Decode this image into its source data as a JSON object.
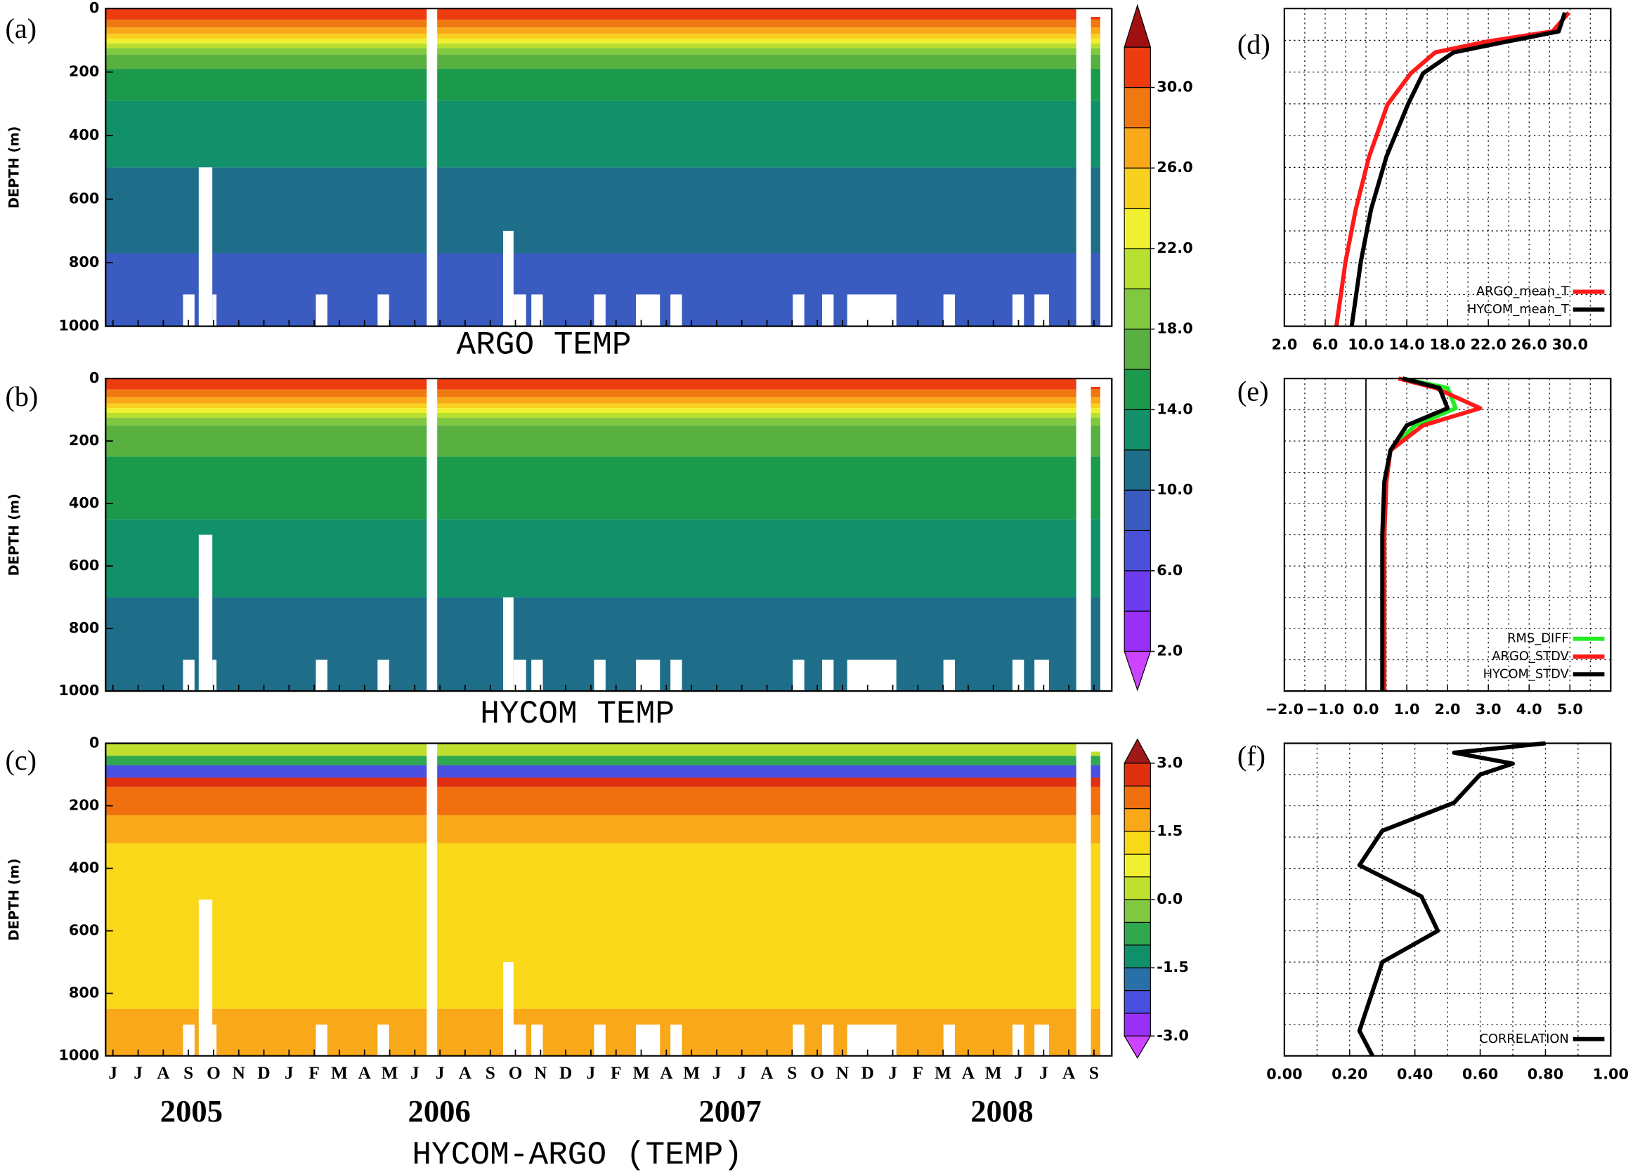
{
  "chart_data": [
    {
      "type": "contour",
      "panel_label": "(a)",
      "title": "ARGO TEMP",
      "ylabel": "DEPTH (m)",
      "ylim": [
        0,
        1000
      ],
      "y_inverted": true,
      "yticks": [
        0,
        200,
        400,
        600,
        800,
        1000
      ],
      "isotherms": {
        "levels": [
          30,
          28,
          26,
          24,
          22,
          20,
          18,
          16,
          14,
          12,
          10
        ],
        "depths": [
          35,
          60,
          80,
          95,
          110,
          125,
          145,
          190,
          290,
          500,
          770
        ]
      },
      "colorbar": {
        "levels": [
          2,
          4,
          6,
          8,
          10,
          12,
          14,
          16,
          18,
          20,
          22,
          24,
          26,
          28,
          30,
          32
        ],
        "colors": [
          "#cc44ff",
          "#9a30f8",
          "#6e3cf0",
          "#4a50d8",
          "#3a5cc0",
          "#1e6e8a",
          "#11906a",
          "#1a9a4a",
          "#58b040",
          "#80c840",
          "#b8e030",
          "#f0f030",
          "#f8d020",
          "#f8a818",
          "#f07810",
          "#ec3c10",
          "#a01010"
        ],
        "ticks": [
          {
            "value": 2,
            "label": "2.0"
          },
          {
            "value": 6,
            "label": "6.0"
          },
          {
            "value": 10,
            "label": "10.0"
          },
          {
            "value": 14,
            "label": "14.0"
          },
          {
            "value": 18,
            "label": "18.0"
          },
          {
            "value": 22,
            "label": "22.0"
          },
          {
            "value": 26,
            "label": "26.0"
          },
          {
            "value": 30,
            "label": "30.0"
          }
        ]
      }
    },
    {
      "type": "contour",
      "panel_label": "(b)",
      "title": "HYCOM TEMP",
      "ylabel": "DEPTH (m)",
      "ylim": [
        0,
        1000
      ],
      "y_inverted": true,
      "yticks": [
        0,
        200,
        400,
        600,
        800,
        1000
      ],
      "isotherms": {
        "levels": [
          30,
          28,
          26,
          24,
          22,
          20,
          18,
          16,
          14,
          12
        ],
        "depths": [
          35,
          60,
          80,
          95,
          110,
          125,
          150,
          250,
          450,
          700
        ]
      }
    },
    {
      "type": "layers",
      "panel_label": "(c)",
      "title": "HYCOM-ARGO (TEMP)",
      "ylabel": "DEPTH (m)",
      "ylim": [
        0,
        1000
      ],
      "y_inverted": true,
      "yticks": [
        0,
        200,
        400,
        600,
        800,
        1000
      ],
      "layers": {
        "depths": [
          0,
          40,
          70,
          110,
          140,
          230,
          320,
          850,
          1000
        ],
        "values": [
          0.3,
          -0.8,
          -2.2,
          2.8,
          2.3,
          1.8,
          1.3,
          1.7
        ]
      },
      "colorbar": {
        "levels": [
          -3,
          -2.5,
          -2,
          -1.5,
          -1,
          -0.5,
          0,
          0.5,
          1,
          1.5,
          2,
          2.5,
          3
        ],
        "colors": [
          "#cc44ff",
          "#9a30f8",
          "#4a50e0",
          "#2a70a8",
          "#10906a",
          "#30a850",
          "#80c840",
          "#c0e030",
          "#f0f030",
          "#f8d818",
          "#f8a818",
          "#f07010",
          "#e03010",
          "#a01818"
        ],
        "ticks": [
          {
            "value": -3,
            "label": "-3.0"
          },
          {
            "value": -1.5,
            "label": "-1.5"
          },
          {
            "value": 0,
            "label": "0.0"
          },
          {
            "value": 1.5,
            "label": "1.5"
          },
          {
            "value": 3,
            "label": "3.0"
          }
        ]
      },
      "categories": [
        "J",
        "J",
        "A",
        "S",
        "O",
        "N",
        "D",
        "J",
        "F",
        "M",
        "A",
        "M",
        "J",
        "J",
        "A",
        "S",
        "O",
        "N",
        "D",
        "J",
        "F",
        "M",
        "A",
        "M",
        "J",
        "J",
        "A",
        "S",
        "O",
        "N",
        "D",
        "J",
        "F",
        "M",
        "A",
        "M",
        "J",
        "J",
        "A",
        "S"
      ],
      "years": [
        "2005",
        "2006",
        "2007",
        "2008"
      ]
    },
    {
      "type": "line",
      "panel_label": "(d)",
      "ylim": [
        0,
        1000
      ],
      "y_inverted": true,
      "y": [
        13,
        72,
        105,
        138,
        204,
        303,
        467,
        632,
        796,
        1000
      ],
      "series": [
        {
          "name": "ARGO_mean_T",
          "color": "#ff1a1a",
          "values": [
            29.9,
            28.3,
            21.7,
            16.8,
            14.4,
            12.1,
            10.3,
            9.0,
            8.0,
            7.1
          ]
        },
        {
          "name": "HYCOM_mean_T",
          "color": "#000000",
          "values": [
            29.5,
            28.9,
            23.7,
            18.6,
            15.6,
            14.1,
            12.0,
            10.5,
            9.5,
            8.6
          ]
        }
      ],
      "xlim": [
        2,
        34
      ],
      "xticks": [
        {
          "value": 2,
          "label": "2.0"
        },
        {
          "value": 6,
          "label": "6.0"
        },
        {
          "value": 10,
          "label": "10.0"
        },
        {
          "value": 14,
          "label": "14.0"
        },
        {
          "value": 18,
          "label": "18.0"
        },
        {
          "value": 22,
          "label": "22.0"
        },
        {
          "value": 26,
          "label": "26.0"
        },
        {
          "value": 30,
          "label": "30.0"
        }
      ],
      "xgrid": [
        2,
        4,
        6,
        8,
        10,
        12,
        14,
        16,
        18,
        20,
        22,
        24,
        26,
        28,
        30,
        32,
        34
      ],
      "ygrid": [
        0,
        100,
        200,
        300,
        400,
        500,
        600,
        700,
        800,
        900,
        1000
      ],
      "legend": "lower right"
    },
    {
      "type": "line",
      "panel_label": "(e)",
      "ylim": [
        0,
        1000
      ],
      "y_inverted": true,
      "y": [
        0,
        30,
        95,
        150,
        230,
        330,
        500,
        1000
      ],
      "series": [
        {
          "name": "RMS_DIFF",
          "color": "#22ee22",
          "values": [
            0.9,
            2.0,
            2.2,
            1.2,
            0.6,
            0.5,
            0.45,
            0.45
          ]
        },
        {
          "name": "ARGO_STDV",
          "color": "#ff1a1a",
          "values": [
            0.8,
            1.7,
            2.8,
            1.4,
            0.6,
            0.5,
            0.45,
            0.45
          ]
        },
        {
          "name": "HYCOM_STDV",
          "color": "#000000",
          "values": [
            0.9,
            1.8,
            2.0,
            1.0,
            0.6,
            0.45,
            0.4,
            0.4
          ]
        }
      ],
      "xlim": [
        -2,
        6
      ],
      "xticks": [
        {
          "value": -2,
          "label": "−2.0"
        },
        {
          "value": -1,
          "label": "−1.0"
        },
        {
          "value": 0,
          "label": "0.0"
        },
        {
          "value": 1,
          "label": "1.0"
        },
        {
          "value": 2,
          "label": "2.0"
        },
        {
          "value": 3,
          "label": "3.0"
        },
        {
          "value": 4,
          "label": "4.0"
        },
        {
          "value": 5,
          "label": "5.0"
        }
      ],
      "xgrid": [
        -2,
        -1.5,
        -1,
        -0.5,
        0,
        0.5,
        1,
        1.5,
        2,
        2.5,
        3,
        3.5,
        4,
        4.5,
        5,
        5.5,
        6
      ],
      "ygrid": [
        0,
        100,
        200,
        300,
        400,
        500,
        600,
        700,
        800,
        900,
        1000
      ],
      "zero_line": true,
      "legend": "lower right"
    },
    {
      "type": "line",
      "panel_label": "(f)",
      "ylim": [
        0,
        1000
      ],
      "y_inverted": true,
      "y": [
        0,
        30,
        65,
        100,
        190,
        280,
        390,
        490,
        600,
        700,
        920,
        1000
      ],
      "series": [
        {
          "name": "CORRELATION",
          "color": "#000000",
          "values": [
            0.8,
            0.52,
            0.7,
            0.6,
            0.52,
            0.3,
            0.23,
            0.42,
            0.47,
            0.3,
            0.23,
            0.27
          ]
        }
      ],
      "xlim": [
        0,
        1
      ],
      "xticks": [
        {
          "value": 0,
          "label": "0.00"
        },
        {
          "value": 0.2,
          "label": "0.20"
        },
        {
          "value": 0.4,
          "label": "0.40"
        },
        {
          "value": 0.6,
          "label": "0.60"
        },
        {
          "value": 0.8,
          "label": "0.80"
        },
        {
          "value": 1,
          "label": "1.00"
        }
      ],
      "xgrid": [
        0,
        0.1,
        0.2,
        0.3,
        0.4,
        0.5,
        0.6,
        0.7,
        0.8,
        0.9,
        1
      ],
      "ygrid": [
        0,
        100,
        200,
        300,
        400,
        500,
        600,
        700,
        800,
        900,
        1000
      ],
      "legend": "lower right"
    }
  ]
}
